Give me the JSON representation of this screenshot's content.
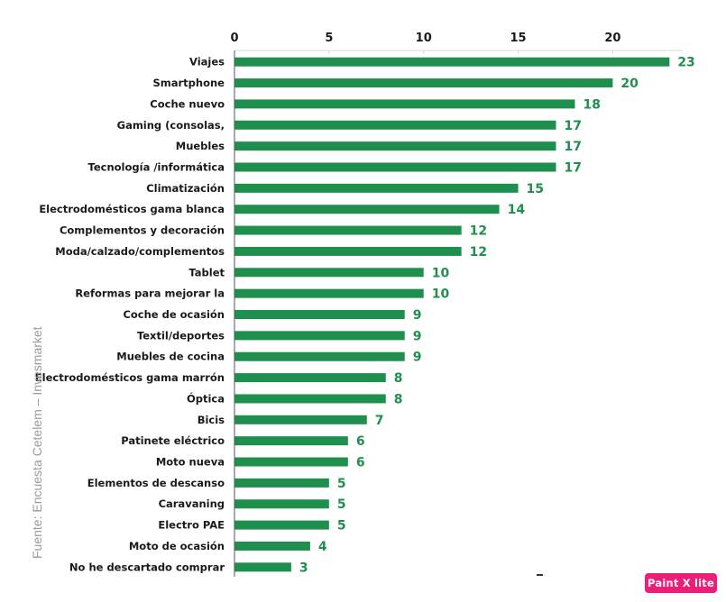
{
  "source_text": "Fuente: Encuesta Cetelem – Invesmarket",
  "badge": "Paint X lite",
  "colors": {
    "bar": "#1f8f4e",
    "value_text": "#1f8f4e",
    "axis": "#555555",
    "grid": "#d9d9d9"
  },
  "chart_data": {
    "type": "bar",
    "orientation": "horizontal",
    "categories": [
      "Viajes",
      "Smartphone",
      "Coche nuevo",
      "Gaming (consolas,",
      "Muebles",
      "Tecnología /informática",
      "Climatización",
      "Electrodomésticos gama blanca",
      "Complementos y decoración",
      "Moda/calzado/complementos",
      "Tablet",
      "Reformas para mejorar la",
      "Coche de ocasión",
      "Textil/deportes",
      "Muebles de cocina",
      "Electrodomésticos gama marrón",
      "Óptica",
      "Bicis",
      "Patinete eléctrico",
      "Moto nueva",
      "Elementos de descanso",
      "Caravaning",
      "Electro PAE",
      "Moto de ocasión",
      "No he descartado comprar"
    ],
    "values": [
      23.0,
      20.0,
      18.0,
      17.0,
      17.0,
      17.0,
      15.0,
      14.0,
      12.0,
      12.0,
      10.0,
      10.0,
      9.0,
      9.0,
      9.0,
      8.0,
      8.0,
      7.0,
      6.0,
      6.0,
      5.0,
      5.0,
      5.0,
      4.0,
      3.0
    ],
    "value_labels": [
      "23",
      "20",
      "18",
      "17",
      "17",
      "17",
      "15",
      "14",
      "12",
      "12",
      "10",
      "10",
      "9",
      "9",
      "9",
      "8",
      "8",
      "7",
      "6",
      "6",
      "5",
      "5",
      "5",
      "4",
      "3"
    ],
    "xticks": [
      0,
      5,
      10,
      15,
      20
    ],
    "xtick_labels": [
      "0",
      "5",
      "10",
      "15",
      "20"
    ],
    "xlim": [
      0,
      23.7
    ],
    "xaxis_position": "top",
    "grid": true,
    "title": "",
    "xlabel": "",
    "ylabel": ""
  }
}
